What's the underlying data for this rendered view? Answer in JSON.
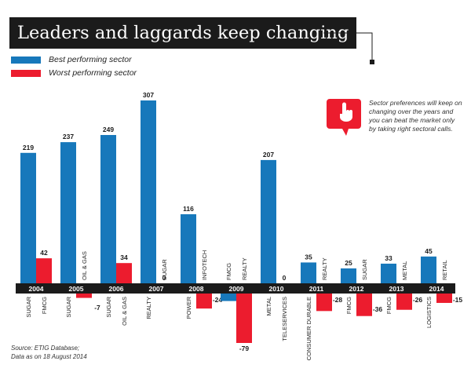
{
  "header": {
    "title": "Leaders and laggards keep changing"
  },
  "note": "Sector preferences will keep on changing over the years and you can beat the market only by taking right sectoral calls.",
  "source_lines": [
    "Source: ETIG Database;",
    "Data as on 18 August 2014"
  ],
  "colors": {
    "best": "#1778bb",
    "worst": "#ec1c2e",
    "band": "#1b1b1b"
  },
  "chart_data": {
    "type": "bar",
    "title": "Leaders and laggards keep changing",
    "categories": [
      "2004",
      "2005",
      "2006",
      "2007",
      "2008",
      "2009",
      "2010",
      "2011",
      "2012",
      "2013",
      "2014"
    ],
    "ylim": [
      -79,
      307
    ],
    "series": [
      {
        "name": "Best performing sector",
        "values": [
          219,
          237,
          249,
          307,
          116,
          -12,
          207,
          35,
          25,
          33,
          45
        ],
        "sectors": [
          "SUGAR",
          "SUGAR",
          "SUGAR",
          "REALTY",
          "POWER",
          "FMCG",
          "METAL",
          "CONSUMER DURABLE",
          "FMCG",
          "FMCG",
          "LOGISTICS"
        ]
      },
      {
        "name": "Worst performing sector",
        "values": [
          42,
          -7,
          34,
          0,
          -24,
          -79,
          0,
          -28,
          -36,
          -26,
          -15
        ],
        "sectors": [
          "FMCG",
          "OIL & GAS",
          "OIL & GAS",
          "SUGAR",
          "INFOTECH",
          "REALTY",
          "TELESERVICES",
          "REALTY",
          "SUGAR",
          "METAL",
          "RETAIL"
        ]
      }
    ]
  }
}
